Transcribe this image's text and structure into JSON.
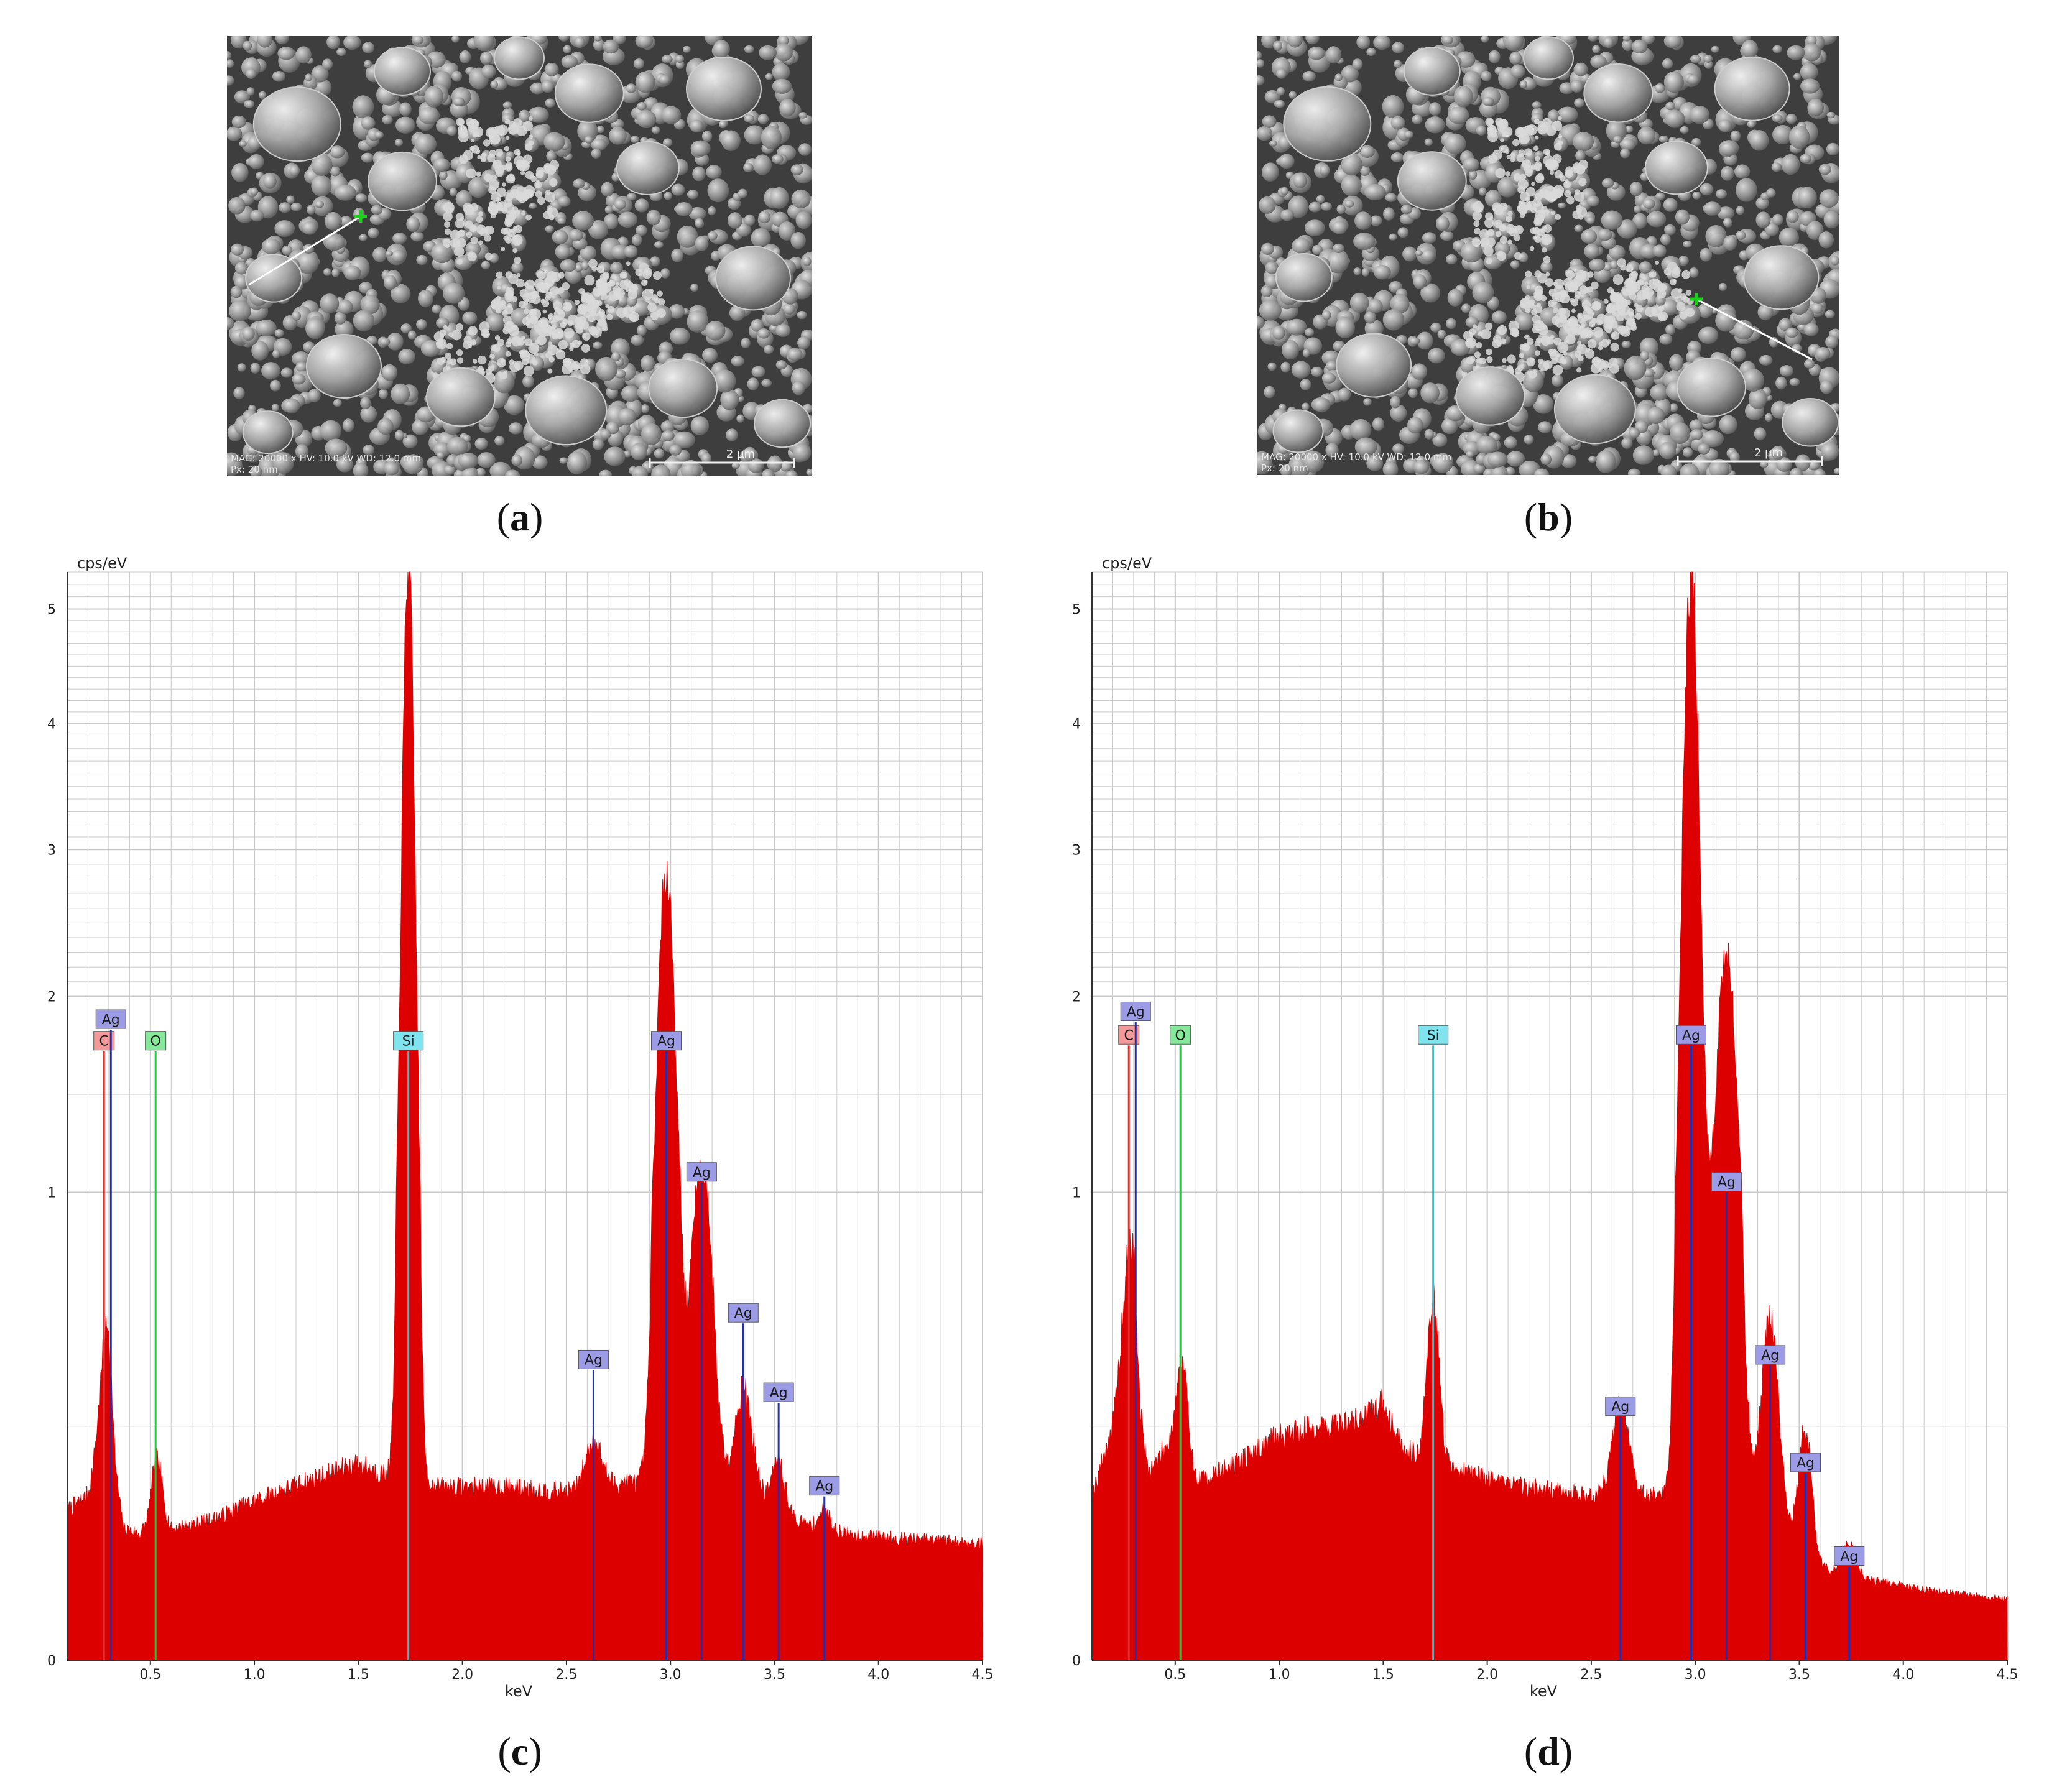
{
  "panels": {
    "a": {
      "label": "a",
      "sem": {
        "scale_bar_label": "2 µm",
        "info_line1": "MAG: 20000 x   HV: 10.0 kV   WD: 12.0 mm",
        "info_line2": "Px: 20 nm"
      }
    },
    "b": {
      "label": "b",
      "sem": {
        "scale_bar_label": "2 µm",
        "info_line1": "MAG: 20000 x   HV: 10.0 kV   WD: 12.0 mm",
        "info_line2": "Px: 20 nm"
      }
    },
    "c": {
      "label": "c"
    },
    "d": {
      "label": "d"
    }
  },
  "colors": {
    "spectrum_fill": "#dd0000",
    "grid": "#c8c8c8",
    "ag_line": "#1f2fb5",
    "ag_box": "#9c9ce6",
    "c_line": "#e03030",
    "c_box": "#f29a9a",
    "o_line": "#22c93a",
    "o_box": "#86e89a",
    "si_line": "#22c8d8",
    "si_box": "#7fe4ee",
    "marker": "#1bd21b",
    "arrow": "#ffffff"
  },
  "chart_data": [
    {
      "type": "area",
      "panel": "c",
      "ylabel": "cps/eV",
      "xlabel": "keV",
      "xlim": [
        0.1,
        4.5
      ],
      "ylim": [
        0,
        5.3
      ],
      "y_scale": "compressed (non-linear)",
      "grid": true,
      "x_ticks": [
        0.5,
        1.0,
        1.5,
        2.0,
        2.5,
        3.0,
        3.5,
        4.0,
        4.5
      ],
      "x_tick_labels": [
        "0.5",
        "1.0",
        "1.5",
        "2.0",
        "2.5",
        "3.0",
        "3.5",
        "4.0",
        "4.5"
      ],
      "y_ticks": [
        0,
        1,
        2,
        3,
        4,
        5
      ],
      "y_tick_labels": [
        "0",
        "1",
        "2",
        "3",
        "4",
        "5"
      ],
      "baseline": [
        [
          0.1,
          0.32
        ],
        [
          0.2,
          0.35
        ],
        [
          0.26,
          0.42
        ],
        [
          0.3,
          0.55
        ],
        [
          0.33,
          0.38
        ],
        [
          0.37,
          0.28
        ],
        [
          0.45,
          0.27
        ],
        [
          0.5,
          0.3
        ],
        [
          0.55,
          0.35
        ],
        [
          0.6,
          0.28
        ],
        [
          0.8,
          0.3
        ],
        [
          1.0,
          0.34
        ],
        [
          1.3,
          0.39
        ],
        [
          1.5,
          0.42
        ],
        [
          1.6,
          0.4
        ],
        [
          1.9,
          0.37
        ],
        [
          2.2,
          0.37
        ],
        [
          2.45,
          0.36
        ],
        [
          2.55,
          0.36
        ],
        [
          2.8,
          0.38
        ],
        [
          2.9,
          0.37
        ],
        [
          3.4,
          0.36
        ],
        [
          3.6,
          0.3
        ],
        [
          3.7,
          0.28
        ],
        [
          3.85,
          0.27
        ],
        [
          4.1,
          0.26
        ],
        [
          4.5,
          0.25
        ]
      ],
      "peaks": [
        {
          "center": 0.28,
          "height": 0.2,
          "width": 0.03
        },
        {
          "center": 0.525,
          "height": 0.1,
          "width": 0.02
        },
        {
          "center": 1.74,
          "height": 5.0,
          "width": 0.028
        },
        {
          "center": 2.63,
          "height": 0.1,
          "width": 0.04
        },
        {
          "center": 2.98,
          "height": 2.5,
          "width": 0.04
        },
        {
          "center": 3.15,
          "height": 0.75,
          "width": 0.05
        },
        {
          "center": 3.35,
          "height": 0.22,
          "width": 0.04
        },
        {
          "center": 3.52,
          "height": 0.1,
          "width": 0.03
        },
        {
          "center": 3.74,
          "height": 0.04,
          "width": 0.03
        }
      ],
      "element_markers": [
        {
          "element": "C",
          "energy": 0.277,
          "label_y": 1.72,
          "color_key": "c"
        },
        {
          "element": "Ag",
          "energy": 0.31,
          "label_y": 1.83,
          "color_key": "ag"
        },
        {
          "element": "O",
          "energy": 0.525,
          "label_y": 1.72,
          "color_key": "o"
        },
        {
          "element": "Si",
          "energy": 1.74,
          "label_y": 1.72,
          "color_key": "si"
        },
        {
          "element": "Ag",
          "energy": 2.63,
          "label_y": 0.62,
          "color_key": "ag"
        },
        {
          "element": "Ag",
          "energy": 2.98,
          "label_y": 1.72,
          "color_key": "ag"
        },
        {
          "element": "Ag",
          "energy": 3.15,
          "label_y": 1.05,
          "color_key": "ag"
        },
        {
          "element": "Ag",
          "energy": 3.35,
          "label_y": 0.72,
          "color_key": "ag"
        },
        {
          "element": "Ag",
          "energy": 3.52,
          "label_y": 0.55,
          "color_key": "ag"
        },
        {
          "element": "Ag",
          "energy": 3.74,
          "label_y": 0.35,
          "color_key": "ag"
        }
      ]
    },
    {
      "type": "area",
      "panel": "d",
      "ylabel": "cps/eV",
      "xlabel": "keV",
      "xlim": [
        0.1,
        4.5
      ],
      "ylim": [
        0,
        5.3
      ],
      "y_scale": "compressed (non-linear)",
      "grid": true,
      "x_ticks": [
        0.5,
        1.0,
        1.5,
        2.0,
        2.5,
        3.0,
        3.5,
        4.0,
        4.5
      ],
      "x_tick_labels": [
        "0.5",
        "1.0",
        "1.5",
        "2.0",
        "2.5",
        "3.0",
        "3.5",
        "4.0",
        "4.5"
      ],
      "y_ticks": [
        0,
        1,
        2,
        3,
        4,
        5
      ],
      "y_tick_labels": [
        "0",
        "1",
        "2",
        "3",
        "4",
        "5"
      ],
      "baseline": [
        [
          0.1,
          0.35
        ],
        [
          0.2,
          0.5
        ],
        [
          0.24,
          0.6
        ],
        [
          0.3,
          0.72
        ],
        [
          0.33,
          0.5
        ],
        [
          0.37,
          0.4
        ],
        [
          0.45,
          0.45
        ],
        [
          0.5,
          0.5
        ],
        [
          0.55,
          0.55
        ],
        [
          0.6,
          0.38
        ],
        [
          0.8,
          0.42
        ],
        [
          1.0,
          0.48
        ],
        [
          1.2,
          0.5
        ],
        [
          1.4,
          0.51
        ],
        [
          1.5,
          0.55
        ],
        [
          1.6,
          0.45
        ],
        [
          1.9,
          0.4
        ],
        [
          2.2,
          0.37
        ],
        [
          2.5,
          0.35
        ],
        [
          2.6,
          0.35
        ],
        [
          2.8,
          0.35
        ],
        [
          2.9,
          0.34
        ],
        [
          3.2,
          0.32
        ],
        [
          3.4,
          0.28
        ],
        [
          3.5,
          0.26
        ],
        [
          3.6,
          0.2
        ],
        [
          3.7,
          0.18
        ],
        [
          3.85,
          0.17
        ],
        [
          4.1,
          0.15
        ],
        [
          4.5,
          0.13
        ]
      ],
      "peaks": [
        {
          "center": 0.28,
          "height": 0.2,
          "width": 0.03
        },
        {
          "center": 0.525,
          "height": 0.1,
          "width": 0.02
        },
        {
          "center": 1.74,
          "height": 0.35,
          "width": 0.028
        },
        {
          "center": 2.64,
          "height": 0.19,
          "width": 0.04
        },
        {
          "center": 2.98,
          "height": 5.0,
          "width": 0.038
        },
        {
          "center": 3.15,
          "height": 1.95,
          "width": 0.05
        },
        {
          "center": 3.36,
          "height": 0.45,
          "width": 0.04
        },
        {
          "center": 3.53,
          "height": 0.25,
          "width": 0.03
        },
        {
          "center": 3.74,
          "height": 0.07,
          "width": 0.03
        }
      ],
      "element_markers": [
        {
          "element": "C",
          "energy": 0.277,
          "label_y": 1.75,
          "color_key": "c"
        },
        {
          "element": "Ag",
          "energy": 0.31,
          "label_y": 1.87,
          "color_key": "ag"
        },
        {
          "element": "O",
          "energy": 0.525,
          "label_y": 1.75,
          "color_key": "o"
        },
        {
          "element": "Si",
          "energy": 1.74,
          "label_y": 1.75,
          "color_key": "si"
        },
        {
          "element": "Ag",
          "energy": 2.64,
          "label_y": 0.52,
          "color_key": "ag"
        },
        {
          "element": "Ag",
          "energy": 2.98,
          "label_y": 1.75,
          "color_key": "ag"
        },
        {
          "element": "Ag",
          "energy": 3.15,
          "label_y": 1.0,
          "color_key": "ag"
        },
        {
          "element": "Ag",
          "energy": 3.36,
          "label_y": 0.63,
          "color_key": "ag"
        },
        {
          "element": "Ag",
          "energy": 3.53,
          "label_y": 0.4,
          "color_key": "ag"
        },
        {
          "element": "Ag",
          "energy": 3.74,
          "label_y": 0.2,
          "color_key": "ag"
        }
      ]
    }
  ]
}
